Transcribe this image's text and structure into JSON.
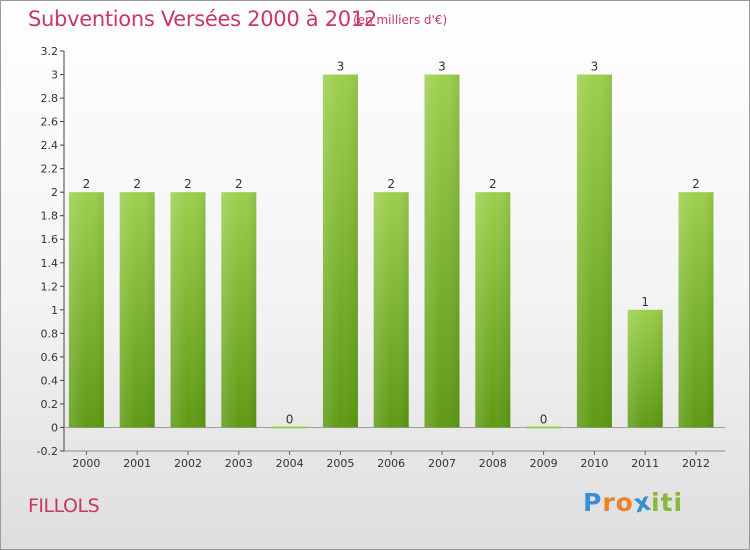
{
  "header": {
    "title": "Subventions Versées 2000 à 2012",
    "subtitle": "(en milliers d'€)"
  },
  "footer": {
    "commune": "FILLOLS",
    "logo_text": "Proxiti"
  },
  "colors": {
    "bar_top": "#9ccf4d",
    "bar_bottom": "#5e9a14",
    "title": "#c8385f"
  },
  "chart_data": {
    "type": "bar",
    "title": "Subventions Versées 2000 à 2012",
    "subtitle": "(en milliers d'€)",
    "categories": [
      "2000",
      "2001",
      "2002",
      "2003",
      "2004",
      "2005",
      "2006",
      "2007",
      "2008",
      "2009",
      "2010",
      "2011",
      "2012"
    ],
    "values": [
      2,
      2,
      2,
      2,
      0,
      3,
      2,
      3,
      2,
      0,
      3,
      1,
      2
    ],
    "ylim": [
      -0.2,
      3.2
    ],
    "yticks": [
      "-0.2",
      "0",
      "0.2",
      "0.4",
      "0.6",
      "0.8",
      "1",
      "1.2",
      "1.4",
      "1.6",
      "1.8",
      "2",
      "2.2",
      "2.4",
      "2.6",
      "2.8",
      "3",
      "3.2"
    ],
    "grid": false,
    "legend": "none"
  }
}
